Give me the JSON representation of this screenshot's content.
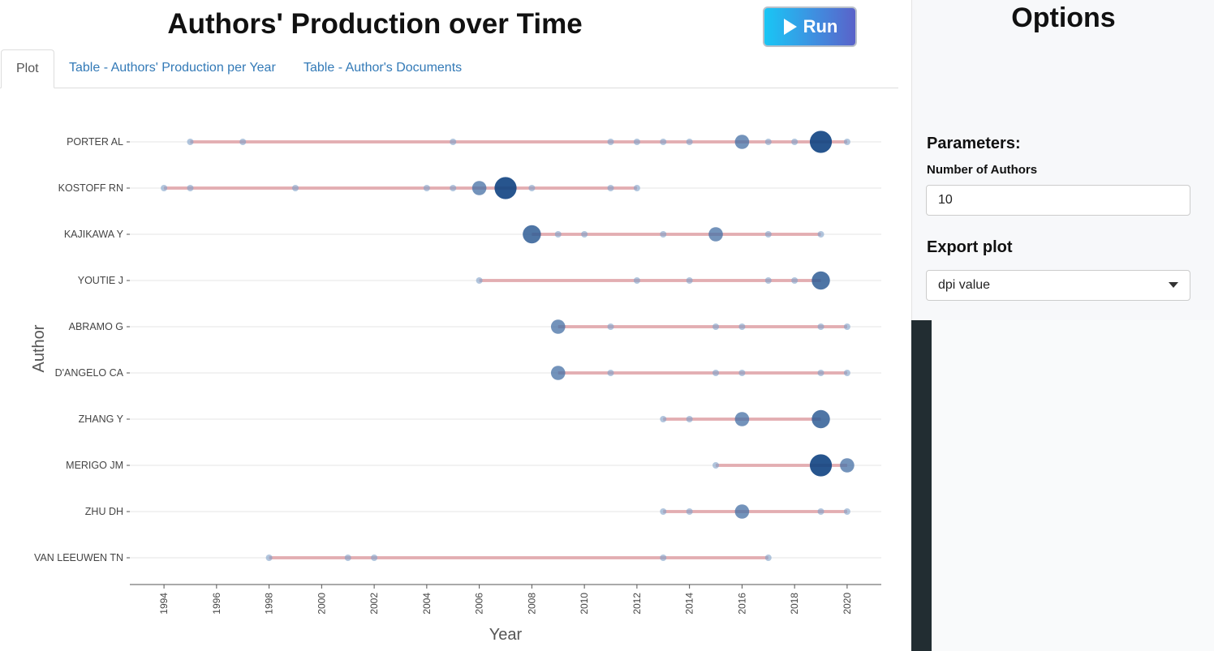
{
  "header": {
    "title": "Authors' Production over Time",
    "run_label": "Run"
  },
  "tabs": [
    {
      "label": "Plot",
      "active": true
    },
    {
      "label": "Table - Authors' Production per Year",
      "active": false
    },
    {
      "label": "Table - Author's Documents",
      "active": false
    }
  ],
  "sidebar": {
    "title": "Options",
    "parameters_heading": "Parameters:",
    "num_authors_label": "Number of Authors",
    "num_authors_value": "10",
    "export_heading": "Export plot",
    "export_select_value": "dpi value"
  },
  "colors": {
    "accent": "#337ab7",
    "segment": "#e8a3a8",
    "point": "#3b6aa0",
    "dark_sidebar": "#222d32"
  },
  "chart_data": {
    "type": "scatter",
    "xlabel": "Year",
    "ylabel": "Author",
    "xlim": [
      1992.7,
      2021.3
    ],
    "x_ticks": [
      1994,
      1996,
      1998,
      2000,
      2002,
      2004,
      2006,
      2008,
      2010,
      2012,
      2014,
      2016,
      2018,
      2020
    ],
    "authors": [
      {
        "name": "PORTER AL",
        "range": [
          1995,
          2020
        ],
        "points": [
          [
            1995,
            1
          ],
          [
            1997,
            1
          ],
          [
            2005,
            1
          ],
          [
            2011,
            1
          ],
          [
            2012,
            1
          ],
          [
            2013,
            1
          ],
          [
            2014,
            1
          ],
          [
            2016,
            3
          ],
          [
            2017,
            1
          ],
          [
            2018,
            1
          ],
          [
            2019,
            5
          ],
          [
            2020,
            1
          ]
        ]
      },
      {
        "name": "KOSTOFF RN",
        "range": [
          1994,
          2012
        ],
        "points": [
          [
            1994,
            1
          ],
          [
            1995,
            1
          ],
          [
            1999,
            1
          ],
          [
            2004,
            1
          ],
          [
            2005,
            1
          ],
          [
            2006,
            3
          ],
          [
            2007,
            5
          ],
          [
            2008,
            1
          ],
          [
            2011,
            1
          ],
          [
            2012,
            1
          ]
        ]
      },
      {
        "name": "KAJIKAWA Y",
        "range": [
          2008,
          2019
        ],
        "points": [
          [
            2008,
            4
          ],
          [
            2009,
            1
          ],
          [
            2010,
            1
          ],
          [
            2013,
            1
          ],
          [
            2015,
            3
          ],
          [
            2017,
            1
          ],
          [
            2019,
            1
          ]
        ]
      },
      {
        "name": "YOUTIE J",
        "range": [
          2006,
          2019
        ],
        "points": [
          [
            2006,
            1
          ],
          [
            2012,
            1
          ],
          [
            2014,
            1
          ],
          [
            2017,
            1
          ],
          [
            2018,
            1
          ],
          [
            2019,
            4
          ]
        ]
      },
      {
        "name": "ABRAMO G",
        "range": [
          2009,
          2020
        ],
        "points": [
          [
            2009,
            3
          ],
          [
            2011,
            1
          ],
          [
            2015,
            1
          ],
          [
            2016,
            1
          ],
          [
            2019,
            1
          ],
          [
            2020,
            1
          ]
        ]
      },
      {
        "name": "D'ANGELO CA",
        "range": [
          2009,
          2020
        ],
        "points": [
          [
            2009,
            3
          ],
          [
            2011,
            1
          ],
          [
            2015,
            1
          ],
          [
            2016,
            1
          ],
          [
            2019,
            1
          ],
          [
            2020,
            1
          ]
        ]
      },
      {
        "name": "ZHANG Y",
        "range": [
          2013,
          2019
        ],
        "points": [
          [
            2013,
            1
          ],
          [
            2014,
            1
          ],
          [
            2016,
            3
          ],
          [
            2019,
            4
          ]
        ]
      },
      {
        "name": "MERIGO JM",
        "range": [
          2015,
          2020
        ],
        "points": [
          [
            2015,
            1
          ],
          [
            2019,
            5
          ],
          [
            2020,
            3
          ]
        ]
      },
      {
        "name": "ZHU DH",
        "range": [
          2013,
          2020
        ],
        "points": [
          [
            2013,
            1
          ],
          [
            2014,
            1
          ],
          [
            2016,
            3
          ],
          [
            2019,
            1
          ],
          [
            2020,
            1
          ]
        ]
      },
      {
        "name": "VAN LEEUWEN TN",
        "range": [
          1998,
          2017
        ],
        "points": [
          [
            1998,
            1
          ],
          [
            2001,
            1
          ],
          [
            2002,
            1
          ],
          [
            2013,
            1
          ],
          [
            2017,
            1
          ]
        ]
      }
    ]
  }
}
